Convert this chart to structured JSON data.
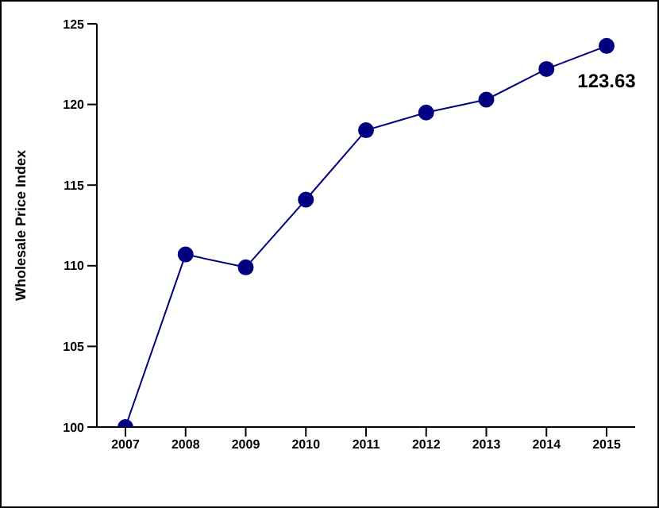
{
  "chart_data": {
    "type": "line",
    "ylabel": "Wholesale Price Index",
    "categories": [
      "2007",
      "2008",
      "2009",
      "2010",
      "2011",
      "2012",
      "2013",
      "2014",
      "2015"
    ],
    "series": [
      {
        "color": "#000080",
        "values": [
          100,
          110.7,
          109.9,
          114.1,
          118.4,
          119.5,
          120.3,
          122.2,
          123.63
        ],
        "value_labels": [
          null,
          null,
          null,
          null,
          null,
          null,
          null,
          null,
          "123.63"
        ]
      }
    ],
    "ylim": [
      100,
      125
    ],
    "yticks": [
      100,
      105,
      110,
      115,
      120,
      125
    ],
    "marker": "circle",
    "line_style": "solid"
  }
}
